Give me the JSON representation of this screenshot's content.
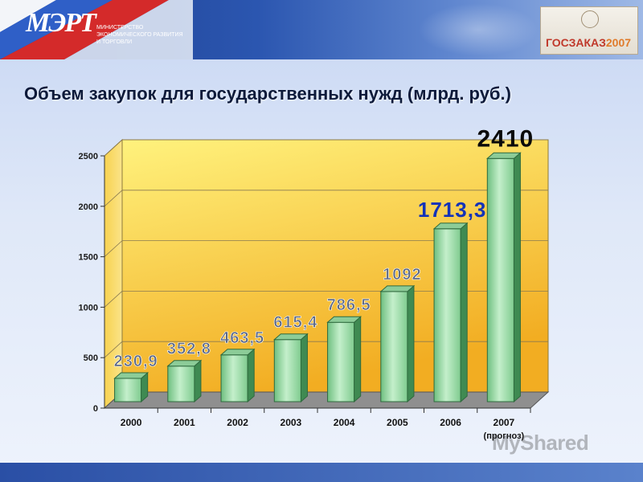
{
  "header": {
    "logo_text": "МЭРТ",
    "ministry_line1": "Министерство",
    "ministry_line2": "экономического развития",
    "ministry_line3": "и торговли",
    "badge_word": "ГОСЗАКАЗ",
    "badge_year": "2007"
  },
  "slide_title": "Объем закупок для государственных нужд (млрд. руб.)",
  "watermark": "MyShared",
  "chart_data": {
    "type": "bar",
    "title": "Объем закупок для государственных нужд (млрд. руб.)",
    "categories": [
      "2000",
      "2001",
      "2002",
      "2003",
      "2004",
      "2005",
      "2006",
      "2007"
    ],
    "category_notes": [
      "",
      "",
      "",
      "",
      "",
      "",
      "",
      "(прогноз)"
    ],
    "values": [
      230.9,
      352.8,
      463.5,
      615.4,
      786.5,
      1092,
      1713.3,
      2410
    ],
    "value_labels": [
      "230,9",
      "352,8",
      "463,5",
      "615,4",
      "786,5",
      "1092",
      "1713,3",
      "2410"
    ],
    "y_ticks": [
      0,
      500,
      1000,
      1500,
      2000,
      2500
    ],
    "ylim": [
      0,
      2500
    ],
    "grid": true,
    "colors": {
      "bar_front": "#9ad8a6",
      "bar_dark": "#3f8a52",
      "wall_top": "#ffef7a",
      "wall_bottom": "#f3b125",
      "floor": "#8a8a8a",
      "label_gray": "#5a6785",
      "label_blue": "#1433b8",
      "label_black": "#0a0a0a"
    }
  }
}
